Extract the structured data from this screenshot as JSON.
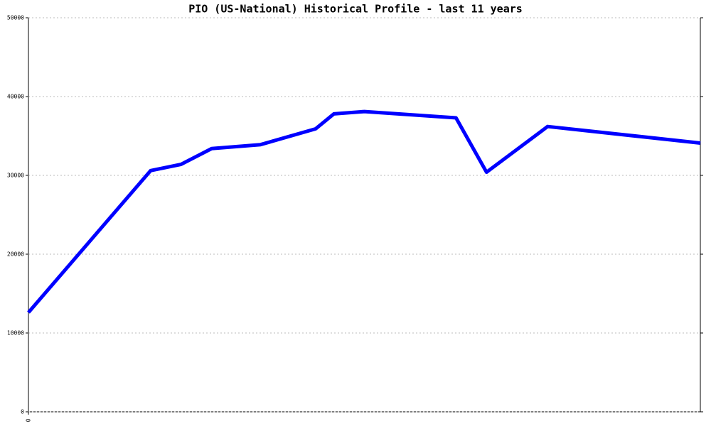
{
  "chart_data": {
    "type": "line",
    "title": "PIO (US-National) Historical Profile - last 11 years",
    "x": [
      0,
      2,
      2.5,
      3,
      3.8,
      4.7,
      5,
      5.5,
      7,
      7.5,
      8.5,
      11
    ],
    "series": [
      {
        "color": "#0000ff",
        "values": [
          12600,
          30600,
          31400,
          33400,
          33900,
          35900,
          37800,
          38100,
          37300,
          30400,
          36200,
          34100
        ]
      }
    ],
    "xlim": [
      0,
      11
    ],
    "xticks": [
      0
    ],
    "ylim": [
      0,
      50000
    ],
    "yticks": [
      0,
      10000,
      20000,
      30000,
      40000,
      50000
    ],
    "grid": true
  }
}
